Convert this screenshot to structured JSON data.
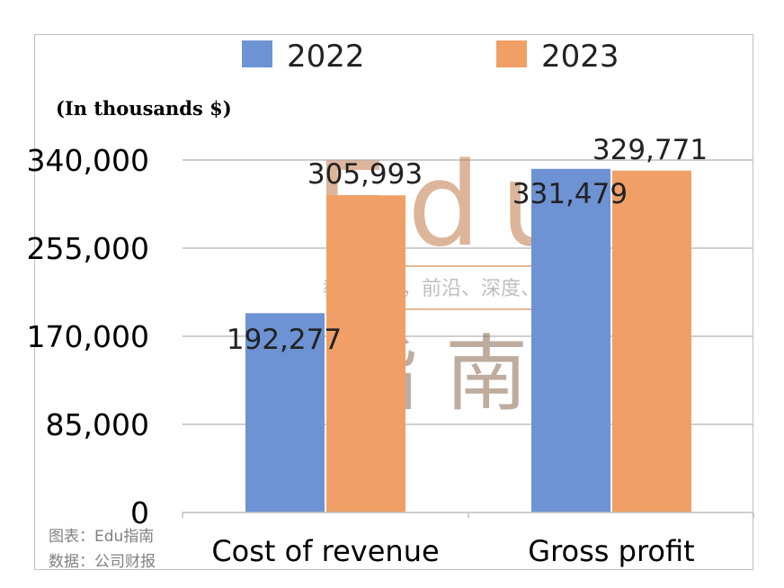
{
  "unit_note": "(In thousands $)",
  "source": {
    "line1": "图表：Edu指南",
    "line2": "数据：公司财报"
  },
  "watermark": {
    "big": "Edu",
    "slogan": "教育行业，前沿、深度、独家",
    "cn": "指南"
  },
  "chart_data": {
    "type": "bar",
    "categories": [
      "Cost of revenue",
      "Gross profit"
    ],
    "series": [
      {
        "name": "2022",
        "values": [
          192277,
          331479
        ],
        "labels": [
          "192,277",
          "331,479"
        ],
        "color": "#6e93d4"
      },
      {
        "name": "2023",
        "values": [
          305993,
          329771
        ],
        "labels": [
          "305,993",
          "329,771"
        ],
        "color": "#f0a066"
      }
    ],
    "yticks": [
      0,
      85000,
      170000,
      255000,
      340000
    ],
    "ytick_labels": [
      "0",
      "85,000",
      "170,000",
      "255,000",
      "340,000"
    ],
    "ylim": [
      0,
      340000
    ],
    "legend_position": "top",
    "grid": true,
    "gridline_color": "#bfbfbf"
  }
}
